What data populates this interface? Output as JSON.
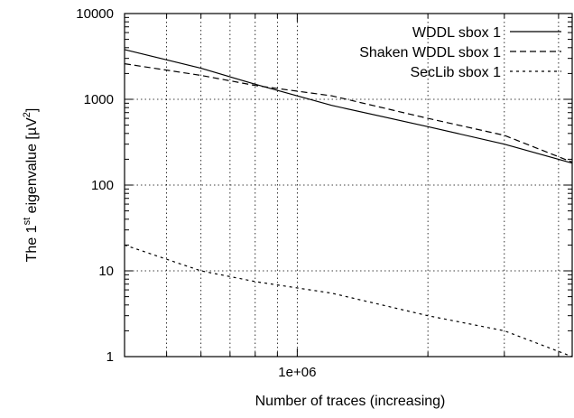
{
  "chart_data": {
    "type": "line",
    "xlabel": "Number of traces (increasing)",
    "ylabel_prefix": "The 1",
    "ylabel_sup": "st",
    "ylabel_mid": " eigenvalue [µV",
    "ylabel_sup2": "2",
    "ylabel_suffix": "]",
    "x_scale": "log",
    "y_scale": "log",
    "xlim": [
      400000,
      4300000
    ],
    "ylim": [
      1,
      10000
    ],
    "grid": true,
    "legend_position": "top-right",
    "x_ticks": [
      {
        "value": 1000000,
        "label": "1e+06"
      }
    ],
    "y_ticks": [
      {
        "value": 1,
        "label": "1"
      },
      {
        "value": 10,
        "label": "10"
      },
      {
        "value": 100,
        "label": "100"
      },
      {
        "value": 1000,
        "label": "1000"
      },
      {
        "value": 10000,
        "label": "10000"
      }
    ],
    "series": [
      {
        "name": "WDDL sbox 1",
        "dash": "solid",
        "x": [
          400000,
          600000,
          800000,
          1200000,
          2000000,
          3000000,
          4300000
        ],
        "y": [
          3800,
          2300,
          1500,
          850,
          480,
          300,
          180
        ]
      },
      {
        "name": "Shaken WDDL sbox 1",
        "dash": "dashed",
        "x": [
          400000,
          600000,
          800000,
          1200000,
          2000000,
          3000000,
          4300000
        ],
        "y": [
          2600,
          1900,
          1450,
          1100,
          600,
          380,
          185
        ]
      },
      {
        "name": "SecLib sbox 1",
        "dash": "dotted",
        "x": [
          400000,
          600000,
          800000,
          1200000,
          2000000,
          3000000,
          4300000
        ],
        "y": [
          20,
          10,
          7.5,
          5.5,
          3,
          2,
          1
        ]
      }
    ]
  }
}
